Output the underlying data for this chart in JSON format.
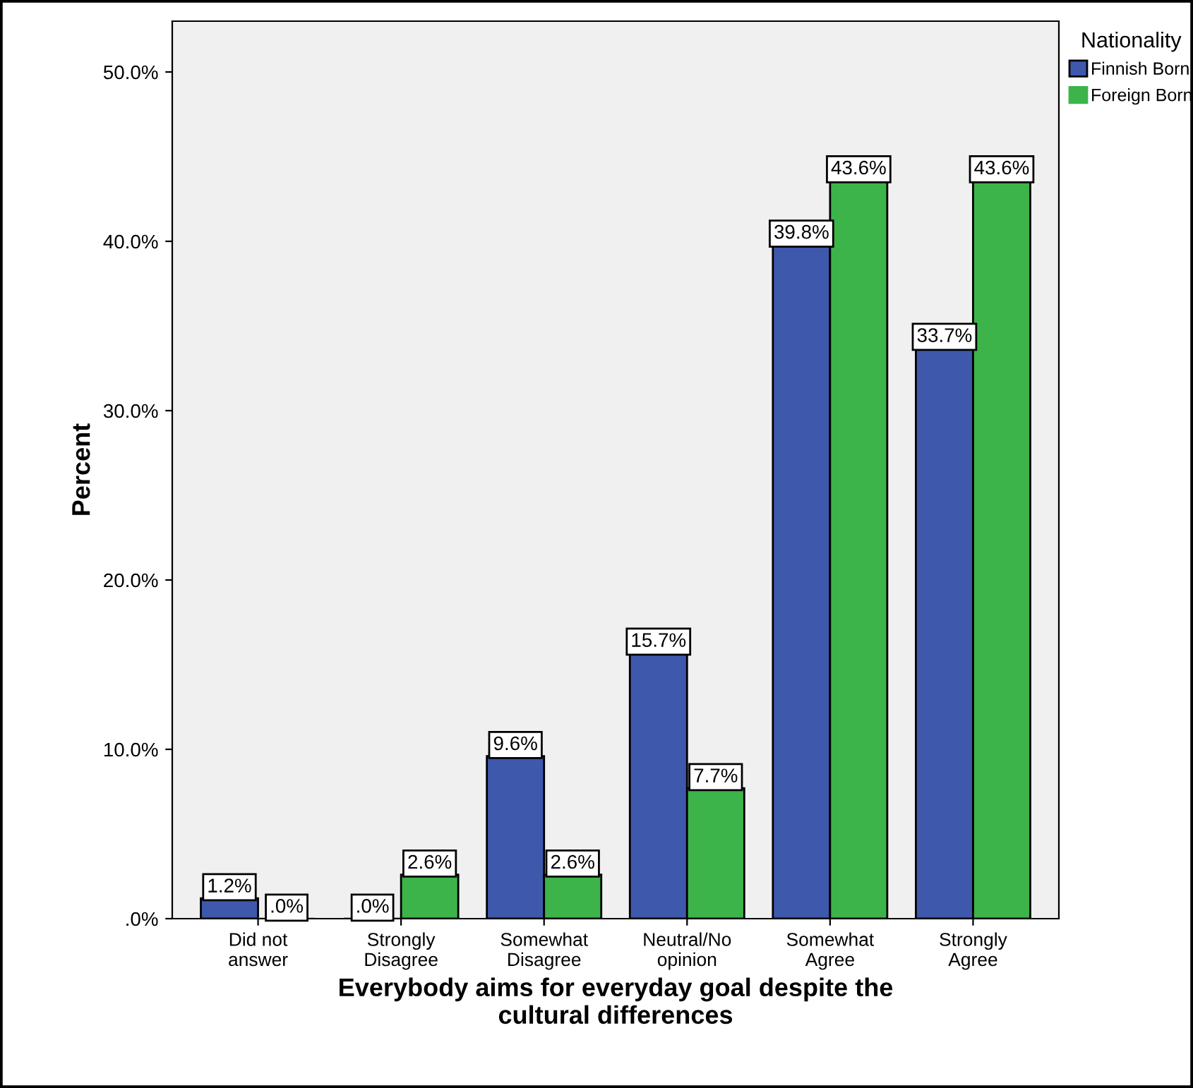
{
  "chart_data": {
    "type": "bar",
    "xlabel": "Everybody aims for everyday goal despite the\ncultural differences",
    "ylabel": "Percent",
    "legend_title": "Nationality",
    "categories": [
      "Did not\nanswer",
      "Strongly\nDisagree",
      "Somewhat\nDisagree",
      "Neutral/No\nopinion",
      "Somewhat\nAgree",
      "Strongly\nAgree"
    ],
    "series": [
      {
        "name": "Finnish Born",
        "color": "#3e58ac",
        "values": [
          1.2,
          0,
          9.6,
          15.7,
          39.8,
          33.7
        ],
        "value_labels": [
          "1.2%",
          ".0%",
          "9.6%",
          "15.7%",
          "39.8%",
          "33.7%"
        ]
      },
      {
        "name": "Foreign Born",
        "color": "#3cb44a",
        "values": [
          0,
          2.6,
          2.6,
          7.7,
          43.6,
          43.6
        ],
        "value_labels": [
          ".0%",
          "2.6%",
          "2.6%",
          "7.7%",
          "43.6%",
          "43.6%"
        ]
      }
    ],
    "ylim": [
      0,
      53
    ],
    "yticks": [
      {
        "value": 0,
        "label": ".0%"
      },
      {
        "value": 10,
        "label": "10.0%"
      },
      {
        "value": 20,
        "label": "20.0%"
      },
      {
        "value": 30,
        "label": "30.0%"
      },
      {
        "value": 40,
        "label": "40.0%"
      },
      {
        "value": 50,
        "label": "50.0%"
      }
    ],
    "grid": false,
    "legend": "top right"
  }
}
